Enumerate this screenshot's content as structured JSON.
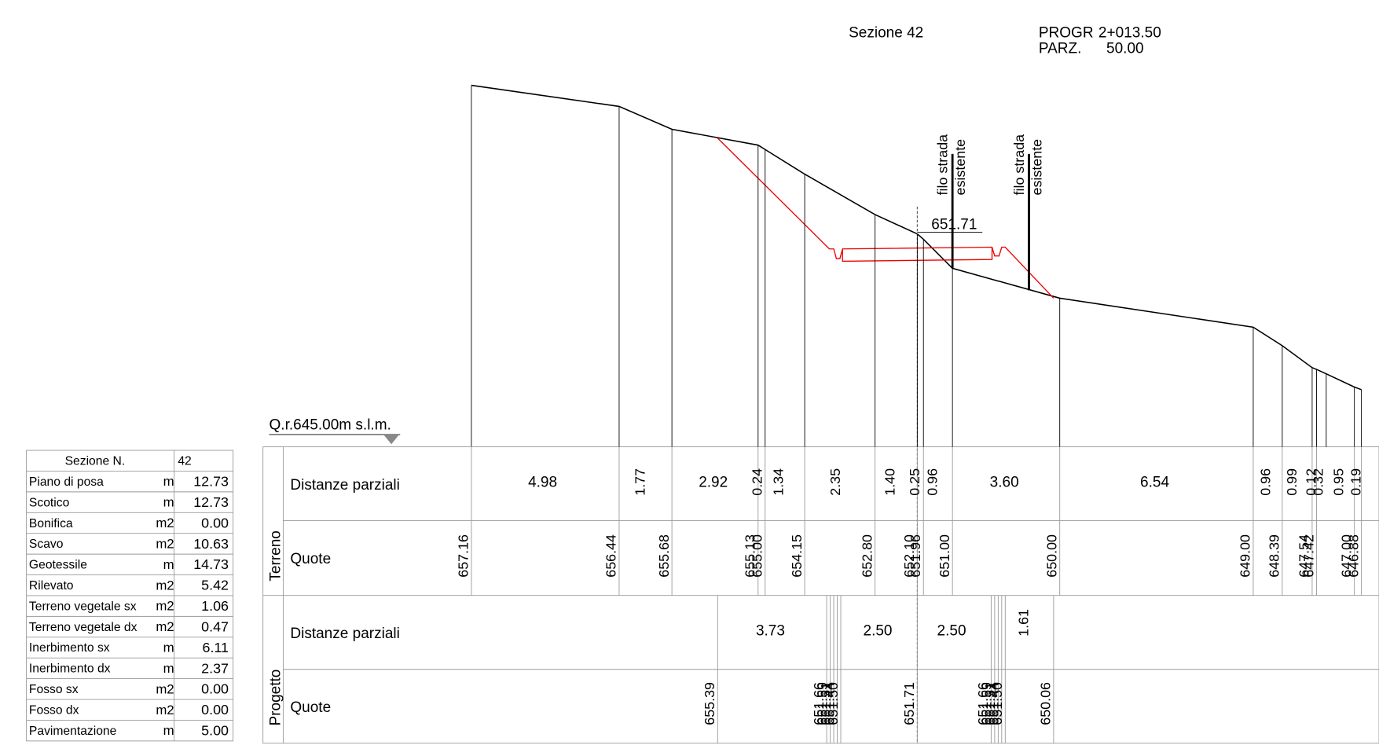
{
  "header": {
    "section": "Sezione 42",
    "progr_label": "PROGR",
    "progr_value": "2+013.50",
    "parz_label": "PARZ.",
    "parz_value": "50.00"
  },
  "reference": "Q.r.645.00m s.l.m.",
  "annotations": {
    "road_left": [
      "filo strada",
      "esistente"
    ],
    "road_right": [
      "filo strada",
      "esistente"
    ],
    "axis_quote": "651.71"
  },
  "summary_table": {
    "header": [
      "Sezione N.",
      "42"
    ],
    "rows": [
      [
        "Piano di posa",
        "m",
        "12.73"
      ],
      [
        "Scotico",
        "m",
        "12.73"
      ],
      [
        "Bonifica",
        "m2",
        "0.00"
      ],
      [
        "Scavo",
        "m2",
        "10.63"
      ],
      [
        "Geotessile",
        "m",
        "14.73"
      ],
      [
        "Rilevato",
        "m2",
        "5.42"
      ],
      [
        "Terreno vegetale sx",
        "m2",
        "1.06"
      ],
      [
        "Terreno vegetale dx",
        "m2",
        "0.47"
      ],
      [
        "Inerbimento sx",
        "m",
        "6.11"
      ],
      [
        "Inerbimento dx",
        "m",
        "2.37"
      ],
      [
        "Fosso sx",
        "m2",
        "0.00"
      ],
      [
        "Fosso dx",
        "m2",
        "0.00"
      ],
      [
        "Pavimentazione",
        "m",
        "5.00"
      ]
    ]
  },
  "bands": {
    "terreno": {
      "label": "Terreno",
      "distances_label": "Distanze parziali",
      "distances": [
        "4.98",
        "1.77",
        "2.92",
        "0.24",
        "1.34",
        "2.35",
        "1.40",
        "0.25",
        "0.96",
        "3.60",
        "6.54",
        "0.96",
        "0.99",
        "0.12",
        "0.32",
        "0.95",
        "0.19"
      ],
      "quotes_label": "Quote",
      "quotes": [
        "657.16",
        "656.44",
        "655.68",
        "655.13",
        "655.00",
        "654.15",
        "652.80",
        "652.10",
        "651.96",
        "651.00",
        "650.00",
        "649.00",
        "648.39",
        "647.54",
        "647.42",
        "647.00",
        "646.88"
      ]
    },
    "progetto": {
      "label": "Progetto",
      "distances_label": "Distanze parziali",
      "distances": [
        "3.73",
        "2.50",
        "2.50",
        "1.61"
      ],
      "quotes_label": "Quote",
      "quotes": [
        "655.39",
        "651.66",
        "651.59",
        "651.51",
        "651.44",
        "651.50",
        "651.71",
        "651.66",
        "651.59",
        "651.51",
        "651.44",
        "651.50",
        "650.06"
      ]
    }
  }
}
